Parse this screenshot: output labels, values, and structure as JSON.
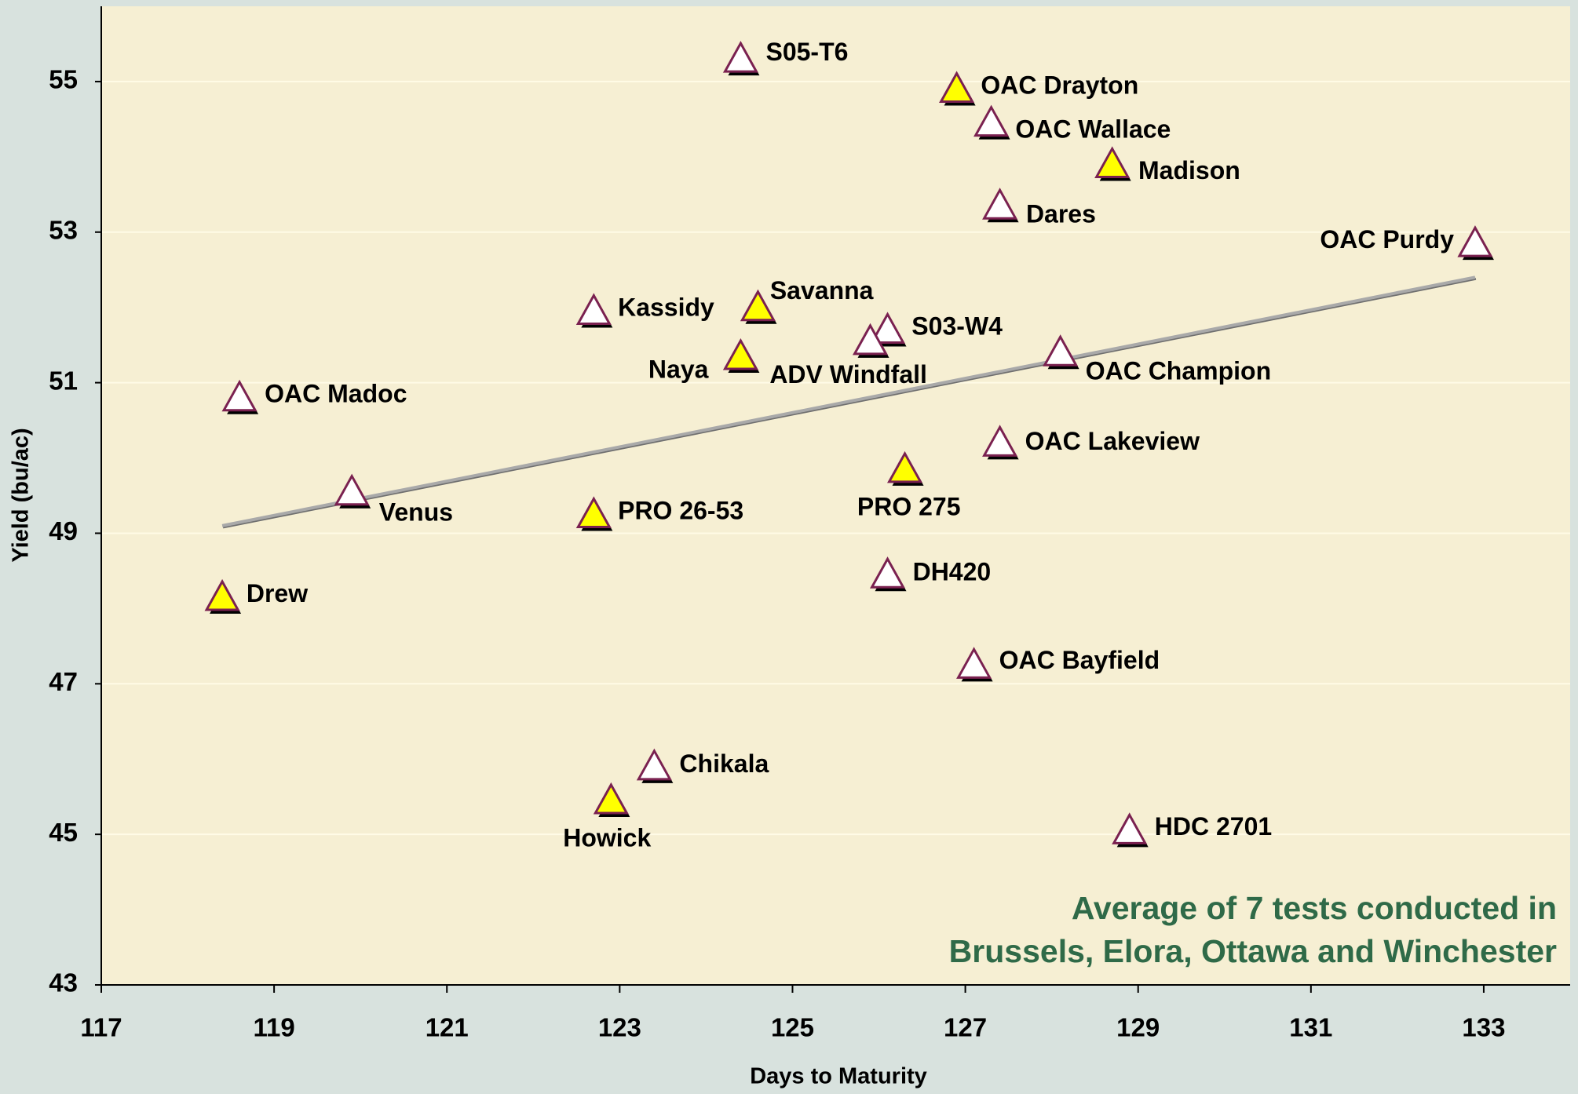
{
  "chart_data": {
    "type": "scatter",
    "x_label": "Days to Maturity",
    "y_label": "Yield (bu/ac)",
    "annotation": [
      "Average of 7 tests conducted in",
      "Brussels, Elora, Ottawa and Winchester"
    ],
    "xlim": [
      117,
      134
    ],
    "ylim": [
      43,
      56
    ],
    "xticks": [
      117,
      119,
      121,
      123,
      125,
      127,
      129,
      131,
      133
    ],
    "yticks": [
      43,
      45,
      47,
      49,
      51,
      53,
      55
    ],
    "grid": true,
    "labels": [
      "S05-T6",
      "OAC Drayton",
      "OAC Wallace",
      "Madison",
      "Dares",
      "OAC Purdy",
      "Kassidy",
      "Savanna",
      "S03-W4",
      "ADV Windfall",
      "Naya",
      "OAC Champion",
      "OAC Madoc",
      "OAC Lakeview",
      "PRO 275",
      "Venus",
      "PRO 26-53",
      "Drew",
      "DH420",
      "OAC Bayfield",
      "Chikala",
      "Howick",
      "HDC 2701"
    ],
    "x": [
      124.4,
      126.9,
      127.3,
      128.7,
      127.4,
      132.9,
      122.7,
      124.6,
      126.1,
      125.9,
      124.4,
      128.1,
      118.6,
      127.4,
      126.3,
      119.9,
      122.7,
      118.4,
      126.1,
      127.1,
      123.4,
      122.9,
      128.9
    ],
    "y": [
      55.3,
      54.9,
      54.45,
      53.9,
      53.35,
      52.85,
      51.95,
      52.0,
      51.7,
      51.55,
      51.35,
      51.4,
      50.8,
      50.2,
      49.85,
      49.55,
      49.25,
      48.15,
      48.45,
      47.25,
      45.9,
      45.45,
      45.05
    ],
    "colors": [
      "#ffffff",
      "#ffff00",
      "#ffffff",
      "#ffff00",
      "#ffffff",
      "#ffffff",
      "#ffffff",
      "#ffff00",
      "#ffffff",
      "#ffffff",
      "#ffff00",
      "#ffffff",
      "#ffffff",
      "#ffffff",
      "#ffff00",
      "#ffffff",
      "#ffff00",
      "#ffff00",
      "#ffffff",
      "#ffffff",
      "#ffffff",
      "#ffff00",
      "#ffffff"
    ],
    "trendline": {
      "x": [
        118.4,
        132.9
      ],
      "y": [
        49.1,
        52.4
      ],
      "color": "#a9a9a9"
    }
  }
}
